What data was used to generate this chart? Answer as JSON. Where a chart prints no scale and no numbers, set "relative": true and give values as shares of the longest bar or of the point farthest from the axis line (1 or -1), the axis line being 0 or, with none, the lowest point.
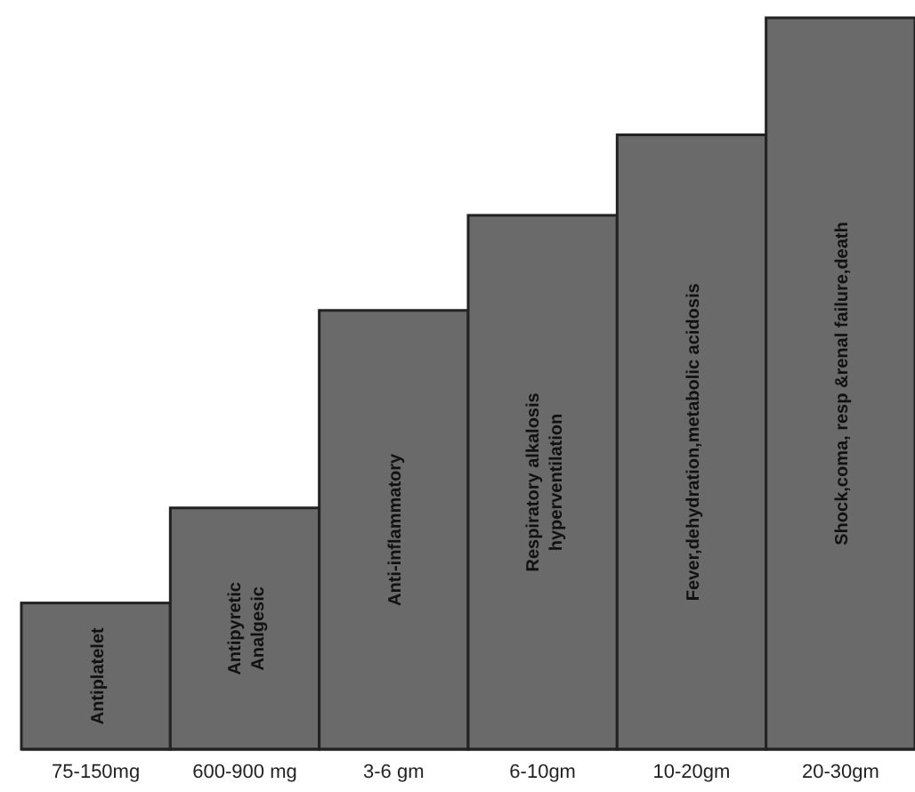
{
  "chart_data": {
    "type": "bar",
    "relative": true,
    "categories": [
      "75-150mg",
      "600-900 mg",
      "3-6 gm",
      "6-10gm",
      "10-20gm",
      "20-30gm"
    ],
    "values": [
      0.2,
      0.33,
      0.6,
      0.73,
      0.84,
      1
    ],
    "color": "#6a6a6a",
    "annotations": [
      "Antiplatelet",
      "Antipyretic\nAnalgesic",
      "Anti-inflammatory",
      "Respiratory alkalosis\nhyperventilation",
      "Fever,dehydration,metabolic acidosis",
      "Shock,coma, resp &renal failure,death"
    ]
  }
}
